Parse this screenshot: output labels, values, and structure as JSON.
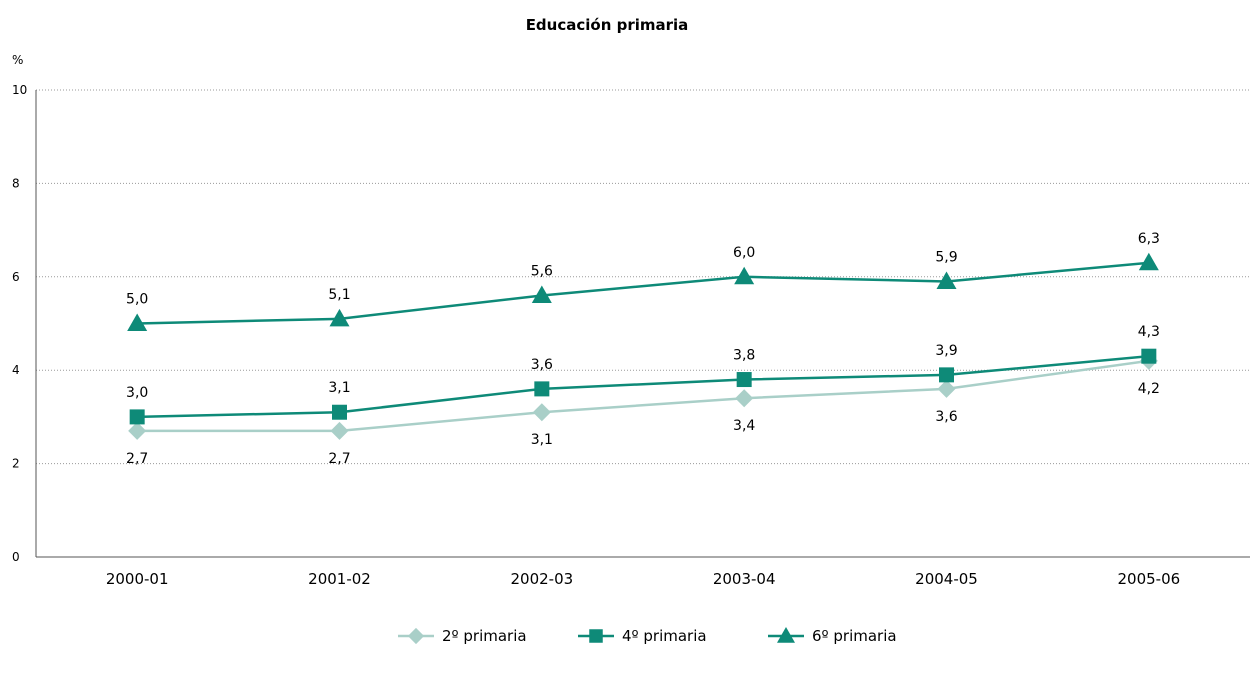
{
  "chart_data": {
    "type": "line",
    "title": "Educación primaria",
    "y_unit": "%",
    "categories": [
      "2000-01",
      "2001-02",
      "2002-03",
      "2003-04",
      "2004-05",
      "2005-06"
    ],
    "ylim": [
      0,
      10
    ],
    "yticks": [
      0,
      2,
      4,
      6,
      8,
      10
    ],
    "grid": true,
    "legend_position": "bottom-center",
    "series": [
      {
        "name": "2º primaria",
        "marker": "diamond",
        "color": "#a9cfc8",
        "values": [
          2.7,
          2.7,
          3.1,
          3.4,
          3.6,
          4.2
        ],
        "labels": [
          "2,7",
          "2,7",
          "3,1",
          "3,4",
          "3,6",
          "4,2"
        ],
        "label_position": "below"
      },
      {
        "name": "4º primaria",
        "marker": "square",
        "color": "#0e8a78",
        "values": [
          3.0,
          3.1,
          3.6,
          3.8,
          3.9,
          4.3
        ],
        "labels": [
          "3,0",
          "3,1",
          "3,6",
          "3,8",
          "3,9",
          "4,3"
        ],
        "label_position": "above"
      },
      {
        "name": "6º primaria",
        "marker": "triangle",
        "color": "#0e8a78",
        "values": [
          5.0,
          5.1,
          5.6,
          6.0,
          5.9,
          6.3
        ],
        "labels": [
          "5,0",
          "5,1",
          "5,6",
          "6,0",
          "5,9",
          "6,3"
        ],
        "label_position": "above"
      }
    ]
  }
}
